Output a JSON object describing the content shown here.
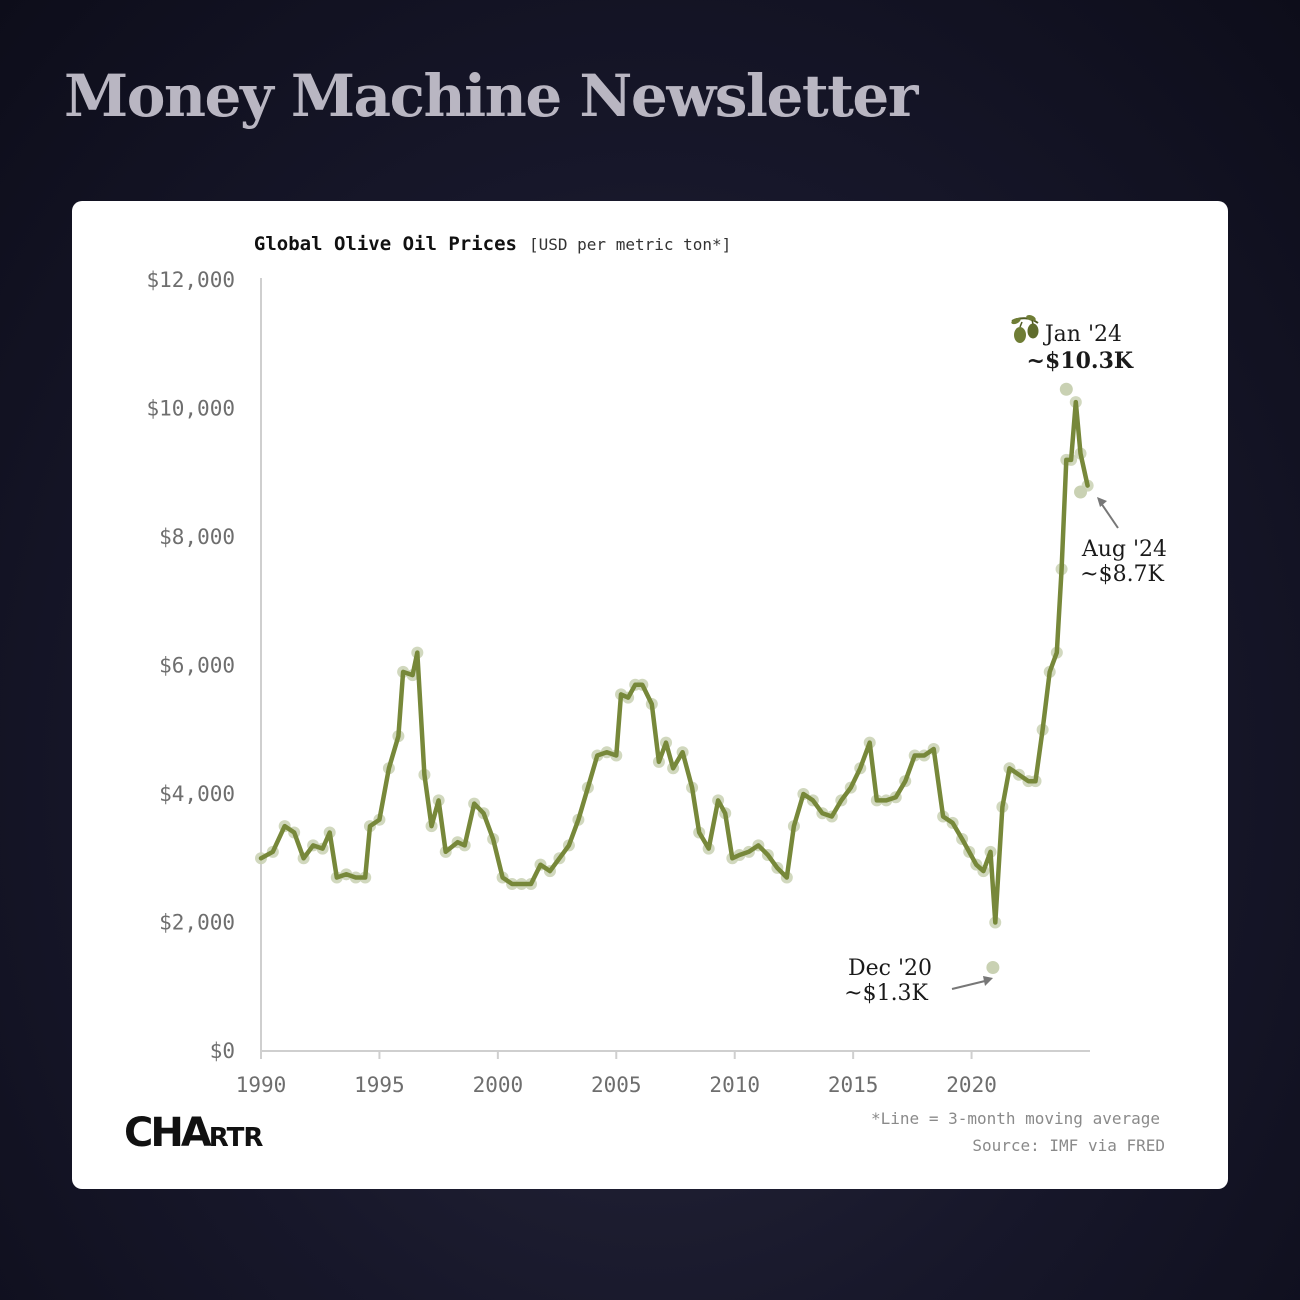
{
  "header": {
    "title": "Money Machine Newsletter"
  },
  "brand": {
    "logo_text": "CHARTR"
  },
  "footnotes": {
    "line_note": "*Line = 3-month moving average",
    "source": "Source: IMF via FRED"
  },
  "colors": {
    "line": "#77883a",
    "dots": "#c9d1b3",
    "axis": "#cfcfcf",
    "tick_text": "#6e6e6e",
    "annotation_text": "#1a1a1a",
    "arrow": "#777777"
  },
  "chart_data": {
    "type": "line",
    "title": "Global Olive Oil Prices",
    "subtitle": "[USD per metric ton*]",
    "xlim": [
      1990,
      2025
    ],
    "ylim": [
      0,
      12000
    ],
    "x_ticks": [
      1990,
      1995,
      2000,
      2005,
      2010,
      2015,
      2020
    ],
    "x_tick_labels": [
      "1990",
      "1995",
      "2000",
      "2005",
      "2010",
      "2015",
      "2020"
    ],
    "y_ticks": [
      0,
      2000,
      4000,
      6000,
      8000,
      10000,
      12000
    ],
    "y_tick_labels": [
      "$0",
      "$2,000",
      "$4,000",
      "$6,000",
      "$8,000",
      "$10,000",
      "$12,000"
    ],
    "grid": false,
    "series": [
      {
        "values": [
          [
            1990.0,
            3000
          ],
          [
            1990.5,
            3100
          ],
          [
            1991.0,
            3500
          ],
          [
            1991.4,
            3400
          ],
          [
            1991.8,
            3000
          ],
          [
            1992.2,
            3200
          ],
          [
            1992.6,
            3150
          ],
          [
            1992.9,
            3400
          ],
          [
            1993.2,
            2700
          ],
          [
            1993.6,
            2750
          ],
          [
            1994.0,
            2700
          ],
          [
            1994.4,
            2700
          ],
          [
            1994.6,
            3500
          ],
          [
            1995.0,
            3600
          ],
          [
            1995.4,
            4400
          ],
          [
            1995.8,
            4900
          ],
          [
            1996.0,
            5900
          ],
          [
            1996.4,
            5850
          ],
          [
            1996.6,
            6200
          ],
          [
            1996.9,
            4300
          ],
          [
            1997.2,
            3500
          ],
          [
            1997.5,
            3900
          ],
          [
            1997.8,
            3100
          ],
          [
            1998.3,
            3250
          ],
          [
            1998.6,
            3200
          ],
          [
            1999.0,
            3850
          ],
          [
            1999.4,
            3700
          ],
          [
            1999.8,
            3300
          ],
          [
            2000.2,
            2700
          ],
          [
            2000.6,
            2600
          ],
          [
            2001.0,
            2600
          ],
          [
            2001.4,
            2600
          ],
          [
            2001.8,
            2900
          ],
          [
            2002.2,
            2800
          ],
          [
            2002.6,
            3000
          ],
          [
            2003.0,
            3200
          ],
          [
            2003.4,
            3600
          ],
          [
            2003.8,
            4100
          ],
          [
            2004.2,
            4600
          ],
          [
            2004.6,
            4650
          ],
          [
            2005.0,
            4600
          ],
          [
            2005.2,
            5550
          ],
          [
            2005.5,
            5500
          ],
          [
            2005.8,
            5700
          ],
          [
            2006.1,
            5700
          ],
          [
            2006.5,
            5400
          ],
          [
            2006.8,
            4500
          ],
          [
            2007.1,
            4800
          ],
          [
            2007.4,
            4400
          ],
          [
            2007.8,
            4650
          ],
          [
            2008.2,
            4100
          ],
          [
            2008.5,
            3400
          ],
          [
            2008.9,
            3150
          ],
          [
            2009.3,
            3900
          ],
          [
            2009.6,
            3700
          ],
          [
            2009.9,
            3000
          ],
          [
            2010.2,
            3050
          ],
          [
            2010.6,
            3100
          ],
          [
            2011.0,
            3200
          ],
          [
            2011.4,
            3050
          ],
          [
            2011.8,
            2850
          ],
          [
            2012.2,
            2700
          ],
          [
            2012.5,
            3500
          ],
          [
            2012.9,
            4000
          ],
          [
            2013.3,
            3900
          ],
          [
            2013.7,
            3700
          ],
          [
            2014.1,
            3650
          ],
          [
            2014.5,
            3900
          ],
          [
            2014.9,
            4100
          ],
          [
            2015.3,
            4400
          ],
          [
            2015.7,
            4800
          ],
          [
            2016.0,
            3900
          ],
          [
            2016.4,
            3900
          ],
          [
            2016.8,
            3950
          ],
          [
            2017.2,
            4200
          ],
          [
            2017.6,
            4600
          ],
          [
            2018.0,
            4600
          ],
          [
            2018.4,
            4700
          ],
          [
            2018.8,
            3650
          ],
          [
            2019.2,
            3550
          ],
          [
            2019.6,
            3300
          ],
          [
            2019.9,
            3100
          ],
          [
            2020.2,
            2900
          ],
          [
            2020.5,
            2800
          ],
          [
            2020.8,
            3100
          ],
          [
            2021.0,
            2000
          ],
          [
            2021.3,
            3800
          ],
          [
            2021.6,
            4400
          ],
          [
            2022.0,
            4300
          ],
          [
            2022.4,
            4200
          ],
          [
            2022.7,
            4200
          ],
          [
            2023.0,
            5000
          ],
          [
            2023.3,
            5900
          ],
          [
            2023.6,
            6200
          ],
          [
            2023.8,
            7500
          ],
          [
            2024.0,
            9200
          ],
          [
            2024.2,
            9200
          ],
          [
            2024.4,
            10100
          ],
          [
            2024.6,
            9300
          ],
          [
            2024.9,
            8800
          ]
        ]
      }
    ],
    "annotations": [
      {
        "label": "Jan '24",
        "value_label": "~$10.3K",
        "x": 2024.0,
        "y": 10300
      },
      {
        "label": "Aug '24",
        "value_label": "~$8.7K",
        "x": 2024.6,
        "y": 8700
      },
      {
        "label": "Dec '20",
        "value_label": "~$1.3K",
        "x": 2020.9,
        "y": 1300
      }
    ]
  }
}
